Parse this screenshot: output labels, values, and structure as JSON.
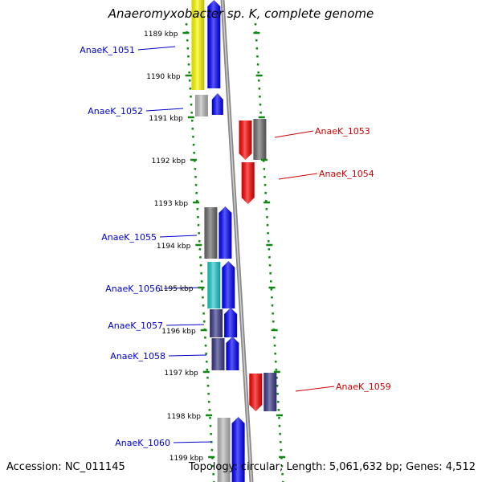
{
  "title": "Anaeromyxobacter sp. K, complete genome",
  "accession_text": "Accession: NC_011145",
  "topology_text": "Topology: circular; Length: 5,061,632 bp; Genes: 4,512",
  "colors": {
    "forward_label": "#0000cc",
    "reverse_label": "#cc0000",
    "backbone": "#888888",
    "tick": "#118811",
    "blue": "#0000ff",
    "red": "#ff0000",
    "navy": "#3a3a8a",
    "gray_dark": "#6e6e6e",
    "gray_light": "#bdbdbd",
    "cyan": "#22cccc",
    "yellow": "#ffff00"
  },
  "ticks": [
    "1189 kbp",
    "1190 kbp",
    "1191 kbp",
    "1192 kbp",
    "1193 kbp",
    "1194 kbp",
    "1195 kbp",
    "1196 kbp",
    "1197 kbp",
    "1198 kbp",
    "1199 kbp"
  ],
  "gene_labels": [
    {
      "name": "AnaeK_1051",
      "strand": "forward"
    },
    {
      "name": "AnaeK_1052",
      "strand": "forward"
    },
    {
      "name": "AnaeK_1053",
      "strand": "reverse"
    },
    {
      "name": "AnaeK_1054",
      "strand": "reverse"
    },
    {
      "name": "AnaeK_1055",
      "strand": "forward"
    },
    {
      "name": "AnaeK_1056",
      "strand": "forward"
    },
    {
      "name": "AnaeK_1057",
      "strand": "forward"
    },
    {
      "name": "AnaeK_1058",
      "strand": "forward"
    },
    {
      "name": "AnaeK_1059",
      "strand": "reverse"
    },
    {
      "name": "AnaeK_1060",
      "strand": "forward"
    }
  ]
}
